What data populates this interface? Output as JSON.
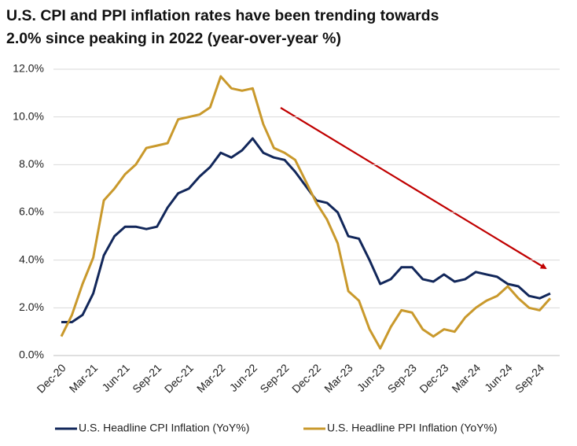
{
  "chart_data": {
    "type": "line",
    "title": "U.S. CPI and PPI inflation rates have been trending towards 2.0% since peaking in 2022 (year-over-year %)",
    "categories": [
      "Dec-20",
      null,
      null,
      "Mar-21",
      null,
      null,
      "Jun-21",
      null,
      null,
      "Sep-21",
      null,
      null,
      "Dec-21",
      null,
      null,
      "Mar-22",
      null,
      null,
      "Jun-22",
      null,
      null,
      "Sep-22",
      null,
      null,
      "Dec-22",
      null,
      null,
      "Mar-23",
      null,
      null,
      "Jun-23",
      null,
      null,
      "Sep-23",
      null,
      null,
      "Dec-23",
      null,
      null,
      "Mar-24",
      null,
      null,
      "Jun-24",
      null,
      null,
      "Sep-24",
      null
    ],
    "series": [
      {
        "name": "U.S. Headline CPI Inflation (YoY%)",
        "color": "#12275a",
        "values": [
          1.4,
          1.4,
          1.7,
          2.6,
          4.2,
          5.0,
          5.4,
          5.4,
          5.3,
          5.4,
          6.2,
          6.8,
          7.0,
          7.5,
          7.9,
          8.5,
          8.3,
          8.6,
          9.1,
          8.5,
          8.3,
          8.2,
          7.7,
          7.1,
          6.5,
          6.4,
          6.0,
          5.0,
          4.9,
          4.0,
          3.0,
          3.2,
          3.7,
          3.7,
          3.2,
          3.1,
          3.4,
          3.1,
          3.2,
          3.5,
          3.4,
          3.3,
          3.0,
          2.9,
          2.5,
          2.4,
          2.6
        ]
      },
      {
        "name": "U.S. Headline PPI Inflation (YoY%)",
        "color": "#c9992c",
        "values": [
          0.8,
          1.7,
          3.0,
          4.1,
          6.5,
          7.0,
          7.6,
          8.0,
          8.7,
          8.8,
          8.9,
          9.9,
          10.0,
          10.1,
          10.4,
          11.7,
          11.2,
          11.1,
          11.2,
          9.7,
          8.7,
          8.5,
          8.2,
          7.3,
          6.4,
          5.7,
          4.7,
          2.7,
          2.3,
          1.1,
          0.3,
          1.2,
          1.9,
          1.8,
          1.1,
          0.8,
          1.1,
          1.0,
          1.6,
          2.0,
          2.3,
          2.5,
          2.9,
          2.4,
          2.0,
          1.9,
          2.4
        ]
      }
    ],
    "ylim": [
      0,
      12
    ],
    "yticks": [
      {
        "value": 0,
        "label": "0.0%"
      },
      {
        "value": 2,
        "label": "2.0%"
      },
      {
        "value": 4,
        "label": "4.0%"
      },
      {
        "value": 6,
        "label": "6.0%"
      },
      {
        "value": 8,
        "label": "8.0%"
      },
      {
        "value": 10,
        "label": "10.0%"
      },
      {
        "value": 12,
        "label": "12.0%"
      }
    ],
    "grid": true
  }
}
